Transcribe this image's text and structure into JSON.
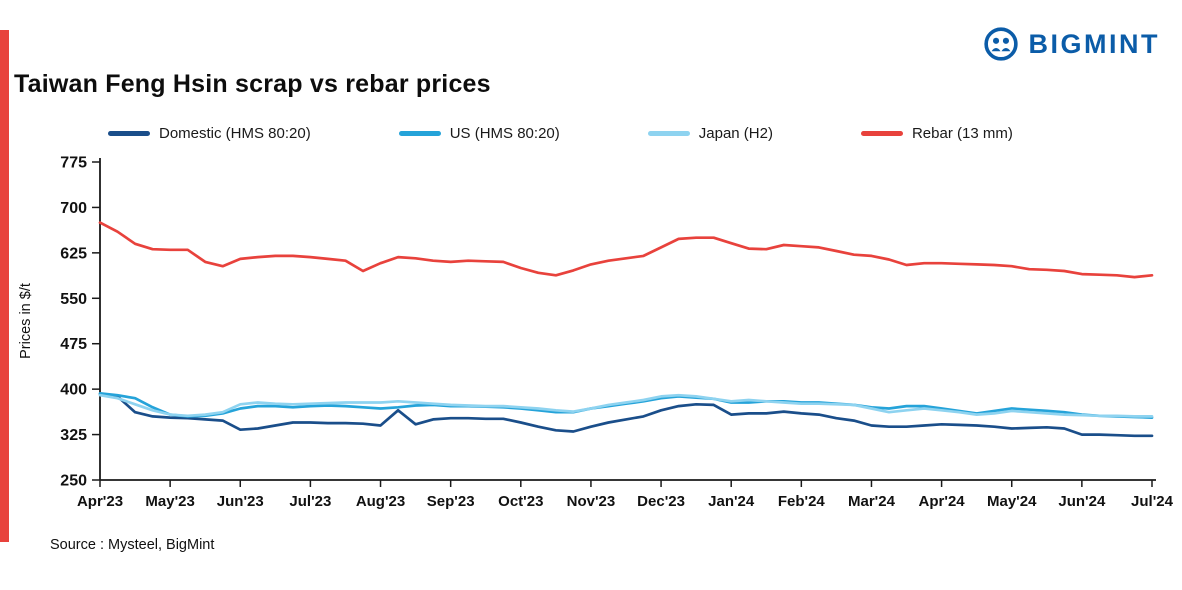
{
  "brand": {
    "name": "BIGMINT"
  },
  "page": {
    "title": "Taiwan Feng Hsin scrap vs rebar prices",
    "source": "Source : Mysteel, BigMint",
    "accent_color": "#e8423c",
    "brand_color": "#0b5ca8"
  },
  "chart_data": {
    "type": "line",
    "title": "Taiwan Feng Hsin scrap vs rebar prices",
    "xlabel": "",
    "ylabel": "Prices in $/t",
    "ylim": [
      250,
      775
    ],
    "yticks": [
      250,
      325,
      400,
      475,
      550,
      625,
      700,
      775
    ],
    "x_tick_labels": [
      "Apr'23",
      "May'23",
      "Jun'23",
      "Jul'23",
      "Aug'23",
      "Sep'23",
      "Oct'23",
      "Nov'23",
      "Dec'23",
      "Jan'24",
      "Feb'24",
      "Mar'24",
      "Apr'24",
      "May'24",
      "Jun'24",
      "Jul'24"
    ],
    "points_per_month": 4,
    "grid": false,
    "legend_position": "top",
    "series": [
      {
        "name": "Domestic (HMS 80:20)",
        "color": "#1a4e8a",
        "values": [
          392,
          388,
          362,
          355,
          353,
          352,
          350,
          348,
          333,
          335,
          340,
          345,
          345,
          344,
          344,
          343,
          340,
          365,
          342,
          350,
          352,
          352,
          351,
          351,
          345,
          338,
          332,
          330,
          338,
          345,
          350,
          355,
          365,
          372,
          375,
          374,
          358,
          360,
          360,
          363,
          360,
          358,
          352,
          348,
          340,
          338,
          338,
          340,
          342,
          341,
          340,
          338,
          335,
          336,
          337,
          335,
          325,
          325,
          324,
          323,
          323
        ]
      },
      {
        "name": "US (HMS 80:20)",
        "color": "#25a3d9",
        "values": [
          393,
          390,
          385,
          370,
          358,
          355,
          356,
          360,
          368,
          372,
          372,
          370,
          372,
          373,
          372,
          370,
          368,
          370,
          373,
          374,
          372,
          372,
          371,
          370,
          368,
          365,
          362,
          362,
          368,
          372,
          376,
          380,
          385,
          388,
          386,
          384,
          378,
          378,
          380,
          380,
          378,
          378,
          376,
          374,
          370,
          368,
          372,
          372,
          368,
          364,
          360,
          364,
          368,
          366,
          364,
          362,
          358,
          356,
          355,
          354,
          353
        ]
      },
      {
        "name": "Japan (H2)",
        "color": "#8ed3f0",
        "values": [
          390,
          385,
          375,
          365,
          358,
          356,
          358,
          362,
          375,
          378,
          376,
          375,
          376,
          377,
          378,
          378,
          378,
          380,
          378,
          376,
          374,
          373,
          372,
          372,
          370,
          368,
          365,
          363,
          368,
          374,
          378,
          382,
          388,
          390,
          388,
          384,
          380,
          382,
          380,
          378,
          376,
          376,
          375,
          374,
          368,
          362,
          365,
          368,
          365,
          362,
          358,
          360,
          364,
          362,
          360,
          358,
          357,
          356,
          356,
          355,
          355
        ]
      },
      {
        "name": "Rebar (13 mm)",
        "color": "#e8423c",
        "values": [
          675,
          660,
          640,
          631,
          630,
          630,
          610,
          603,
          615,
          618,
          620,
          620,
          618,
          615,
          612,
          595,
          608,
          618,
          616,
          612,
          610,
          612,
          611,
          610,
          600,
          592,
          588,
          596,
          606,
          612,
          616,
          620,
          634,
          648,
          650,
          650,
          641,
          632,
          631,
          638,
          636,
          634,
          628,
          622,
          620,
          614,
          605,
          608,
          608,
          607,
          606,
          605,
          603,
          598,
          597,
          595,
          590,
          589,
          588,
          585,
          588
        ]
      }
    ]
  }
}
